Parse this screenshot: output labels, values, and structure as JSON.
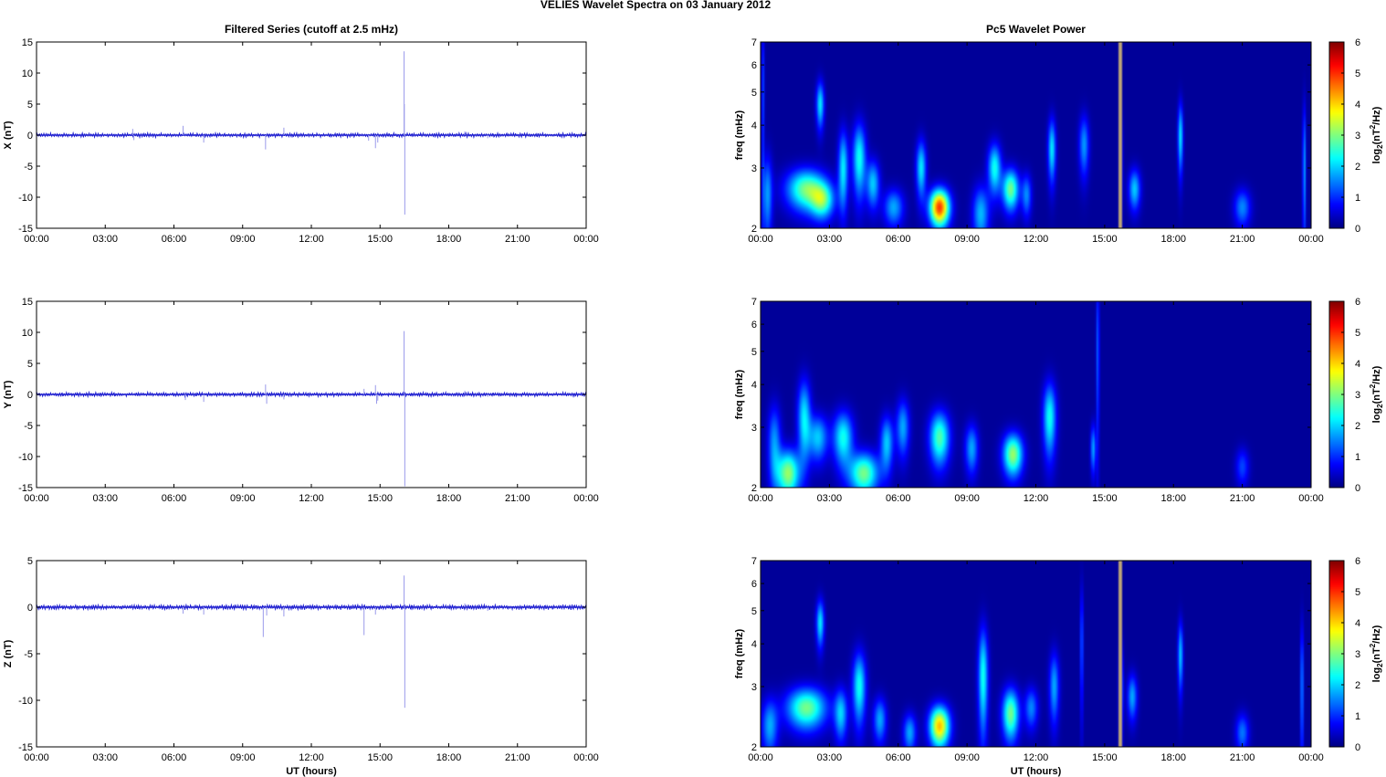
{
  "figure_title": "VELIES Wavelet Spectra on 03 January   2012",
  "colors": {
    "trace": "#1f1fd0",
    "spike": "#9a9aea",
    "frame": "#000000",
    "colormap": "jet",
    "saturated": "#b9a27a"
  },
  "chart_data": [
    {
      "type": "line",
      "title": "Filtered Series (cutoff at 2.5 mHz)",
      "xlabel": "",
      "ylabel": "X (nT)",
      "xticks": [
        "00:00",
        "03:00",
        "06:00",
        "09:00",
        "12:00",
        "15:00",
        "18:00",
        "21:00",
        "00:00"
      ],
      "xlim_hours": [
        0,
        24
      ],
      "ylim": [
        -15,
        15
      ],
      "yticks": [
        15,
        10,
        5,
        0,
        -5,
        -10,
        -15
      ],
      "noise_amplitude": 0.25,
      "spikes": [
        [
          4.2,
          1.0
        ],
        [
          4.25,
          -0.8
        ],
        [
          6.4,
          1.5
        ],
        [
          7.3,
          -1.2
        ],
        [
          10.0,
          -2.3
        ],
        [
          10.8,
          1.2
        ],
        [
          14.5,
          -0.9
        ],
        [
          14.8,
          -2.1
        ],
        [
          14.9,
          -1.2
        ],
        [
          16.05,
          13.5
        ],
        [
          16.08,
          -12.8
        ],
        [
          16.06,
          5.0
        ],
        [
          18.7,
          0.6
        ],
        [
          19.7,
          -0.5
        ]
      ]
    },
    {
      "type": "line",
      "title": "",
      "xlabel": "",
      "ylabel": "Y (nT)",
      "xticks": [
        "00:00",
        "03:00",
        "06:00",
        "09:00",
        "12:00",
        "15:00",
        "18:00",
        "21:00",
        "00:00"
      ],
      "xlim_hours": [
        0,
        24
      ],
      "ylim": [
        -15,
        15
      ],
      "yticks": [
        15,
        10,
        5,
        0,
        -5,
        -10,
        -15
      ],
      "noise_amplitude": 0.25,
      "spikes": [
        [
          6.5,
          -0.9
        ],
        [
          7.3,
          -1.2
        ],
        [
          10.0,
          1.6
        ],
        [
          10.05,
          -1.5
        ],
        [
          10.8,
          -0.8
        ],
        [
          14.3,
          0.9
        ],
        [
          14.8,
          1.5
        ],
        [
          14.85,
          -1.5
        ],
        [
          14.9,
          -1.0
        ],
        [
          16.05,
          10.2
        ],
        [
          16.08,
          -14.8
        ],
        [
          18.7,
          0.6
        ],
        [
          19.7,
          -0.4
        ]
      ]
    },
    {
      "type": "line",
      "title": "",
      "xlabel": "UT (hours)",
      "ylabel": "Z (nT)",
      "xticks": [
        "00:00",
        "03:00",
        "06:00",
        "09:00",
        "12:00",
        "15:00",
        "18:00",
        "21:00",
        "00:00"
      ],
      "xlim_hours": [
        0,
        24
      ],
      "ylim": [
        -15,
        5
      ],
      "yticks": [
        5,
        0,
        -5,
        -10,
        -15
      ],
      "noise_amplitude": 0.2,
      "spikes": [
        [
          6.4,
          -0.7
        ],
        [
          7.3,
          -0.8
        ],
        [
          9.9,
          -3.2
        ],
        [
          10.05,
          -0.9
        ],
        [
          10.8,
          -1.0
        ],
        [
          14.3,
          -3.0
        ],
        [
          14.8,
          -0.8
        ],
        [
          16.05,
          3.4
        ],
        [
          16.08,
          -10.8
        ],
        [
          18.7,
          0.4
        ],
        [
          19.7,
          -0.4
        ]
      ]
    },
    {
      "type": "heatmap",
      "title": "Pc5 Wavelet Power",
      "xlabel": "",
      "ylabel": "freq (mHz)",
      "colorbar_label": "log2(nT2/Hz)",
      "xticks": [
        "00:00",
        "03:00",
        "06:00",
        "09:00",
        "12:00",
        "15:00",
        "18:00",
        "21:00",
        "00:00"
      ],
      "xlim_hours": [
        0,
        24
      ],
      "yscale": "log",
      "ylim": [
        2,
        7
      ],
      "yticks": [
        2,
        3,
        4,
        5,
        6,
        7
      ],
      "clim": [
        0,
        6
      ],
      "cticks": [
        6,
        5,
        4,
        3,
        2,
        1,
        0
      ],
      "saturated_hours": [
        15.7
      ],
      "blobs": [
        [
          0.3,
          2.5,
          0.15,
          0.5,
          1.5
        ],
        [
          0.1,
          5.0,
          0.05,
          2.0,
          1.0
        ],
        [
          2.0,
          2.6,
          0.6,
          0.25,
          2.8
        ],
        [
          2.7,
          2.4,
          0.35,
          0.2,
          2.2
        ],
        [
          2.6,
          4.6,
          0.12,
          0.5,
          2.0
        ],
        [
          3.6,
          3.0,
          0.15,
          0.55,
          2.0
        ],
        [
          4.3,
          3.2,
          0.2,
          0.55,
          2.2
        ],
        [
          4.9,
          2.7,
          0.2,
          0.3,
          1.8
        ],
        [
          5.8,
          2.3,
          0.3,
          0.2,
          1.6
        ],
        [
          7.0,
          3.0,
          0.15,
          0.4,
          2.0
        ],
        [
          7.8,
          2.3,
          0.3,
          0.2,
          4.8
        ],
        [
          9.6,
          2.2,
          0.25,
          0.3,
          1.7
        ],
        [
          10.2,
          3.0,
          0.2,
          0.35,
          2.2
        ],
        [
          10.9,
          2.6,
          0.25,
          0.25,
          2.8
        ],
        [
          11.6,
          2.5,
          0.15,
          0.25,
          1.4
        ],
        [
          12.7,
          3.4,
          0.12,
          0.5,
          2.0
        ],
        [
          14.1,
          3.5,
          0.15,
          0.5,
          1.5
        ],
        [
          15.7,
          3.2,
          0.05,
          0.8,
          2.5
        ],
        [
          16.3,
          2.6,
          0.18,
          0.25,
          1.8
        ],
        [
          18.3,
          3.7,
          0.08,
          0.6,
          2.0
        ],
        [
          21.0,
          2.3,
          0.25,
          0.2,
          1.4
        ],
        [
          23.7,
          3.0,
          0.05,
          1.0,
          1.6
        ]
      ]
    },
    {
      "type": "heatmap",
      "title": "",
      "xlabel": "",
      "ylabel": "freq (mHz)",
      "colorbar_label": "log2(nT2/Hz)",
      "xticks": [
        "00:00",
        "03:00",
        "06:00",
        "09:00",
        "12:00",
        "15:00",
        "18:00",
        "21:00",
        "00:00"
      ],
      "xlim_hours": [
        0,
        24
      ],
      "yscale": "log",
      "ylim": [
        2,
        7
      ],
      "yticks": [
        2,
        3,
        4,
        5,
        6,
        7
      ],
      "clim": [
        0,
        6
      ],
      "cticks": [
        6,
        5,
        4,
        3,
        2,
        1,
        0
      ],
      "saturated_hours": [],
      "blobs": [
        [
          0.6,
          2.7,
          0.2,
          0.5,
          1.5
        ],
        [
          1.2,
          2.2,
          0.35,
          0.25,
          3.0
        ],
        [
          1.9,
          3.2,
          0.2,
          0.6,
          2.0
        ],
        [
          2.5,
          2.8,
          0.3,
          0.3,
          1.8
        ],
        [
          3.6,
          2.8,
          0.3,
          0.35,
          2.2
        ],
        [
          4.5,
          2.2,
          0.45,
          0.22,
          2.8
        ],
        [
          5.5,
          2.7,
          0.2,
          0.35,
          1.8
        ],
        [
          6.2,
          3.0,
          0.2,
          0.4,
          1.6
        ],
        [
          7.8,
          2.8,
          0.3,
          0.35,
          2.6
        ],
        [
          9.2,
          2.6,
          0.2,
          0.3,
          1.6
        ],
        [
          11.0,
          2.5,
          0.3,
          0.25,
          3.0
        ],
        [
          12.6,
          3.2,
          0.2,
          0.55,
          2.2
        ],
        [
          14.5,
          2.6,
          0.08,
          0.3,
          1.6
        ],
        [
          14.7,
          5.0,
          0.05,
          2.0,
          1.2
        ],
        [
          21.0,
          2.3,
          0.2,
          0.2,
          1.0
        ]
      ]
    },
    {
      "type": "heatmap",
      "title": "",
      "xlabel": "UT (hours)",
      "ylabel": "freq (mHz)",
      "colorbar_label": "log2(nT2/Hz)",
      "xticks": [
        "00:00",
        "03:00",
        "06:00",
        "09:00",
        "12:00",
        "15:00",
        "18:00",
        "21:00",
        "00:00"
      ],
      "xlim_hours": [
        0,
        24
      ],
      "yscale": "log",
      "ylim": [
        2,
        7
      ],
      "yticks": [
        2,
        3,
        4,
        5,
        6,
        7
      ],
      "clim": [
        0,
        6
      ],
      "cticks": [
        6,
        5,
        4,
        3,
        2,
        1,
        0
      ],
      "saturated_hours": [
        15.7
      ],
      "blobs": [
        [
          0.4,
          2.3,
          0.25,
          0.3,
          1.6
        ],
        [
          2.0,
          2.6,
          0.6,
          0.25,
          2.8
        ],
        [
          2.6,
          4.6,
          0.12,
          0.5,
          2.0
        ],
        [
          3.5,
          2.5,
          0.2,
          0.3,
          1.8
        ],
        [
          4.3,
          3.0,
          0.2,
          0.5,
          2.2
        ],
        [
          5.2,
          2.4,
          0.2,
          0.25,
          1.6
        ],
        [
          6.5,
          2.2,
          0.2,
          0.2,
          1.6
        ],
        [
          7.8,
          2.3,
          0.3,
          0.22,
          4.0
        ],
        [
          9.7,
          3.2,
          0.15,
          0.8,
          2.2
        ],
        [
          10.9,
          2.5,
          0.25,
          0.3,
          2.8
        ],
        [
          11.8,
          2.6,
          0.2,
          0.25,
          1.4
        ],
        [
          12.8,
          3.0,
          0.15,
          0.5,
          1.6
        ],
        [
          14.0,
          4.0,
          0.05,
          1.2,
          1.2
        ],
        [
          15.7,
          3.0,
          0.06,
          0.7,
          2.8
        ],
        [
          16.2,
          2.8,
          0.15,
          0.3,
          1.6
        ],
        [
          18.3,
          3.7,
          0.08,
          0.6,
          1.8
        ],
        [
          21.0,
          2.2,
          0.2,
          0.2,
          1.3
        ],
        [
          23.6,
          3.0,
          0.05,
          1.0,
          1.5
        ]
      ]
    }
  ]
}
